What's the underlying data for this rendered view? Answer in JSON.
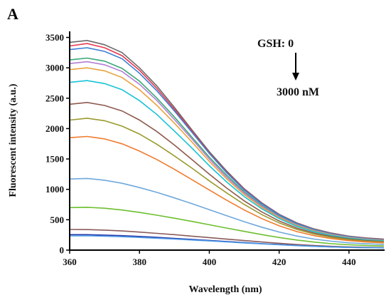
{
  "panel_label": "A",
  "chart_data": {
    "type": "line",
    "xlabel": "Wavelength (nm)",
    "ylabel": "Fluorescent intensity (a.u.)",
    "xlim": [
      360,
      450
    ],
    "ylim": [
      0,
      3600
    ],
    "x_ticks": [
      360,
      380,
      400,
      420,
      440
    ],
    "y_ticks": [
      0,
      500,
      1000,
      1500,
      2000,
      2500,
      3000,
      3500
    ],
    "grid": false,
    "legend": "none",
    "annotations": {
      "start": "GSH: 0",
      "end": "3000 nM",
      "arrow": "down"
    },
    "x": [
      360,
      365,
      370,
      375,
      380,
      385,
      390,
      395,
      400,
      405,
      410,
      415,
      420,
      425,
      430,
      435,
      440,
      445,
      450
    ],
    "series": [
      {
        "color": "#6b6b6b",
        "values": [
          3420,
          3450,
          3380,
          3250,
          3000,
          2700,
          2350,
          1980,
          1620,
          1300,
          1010,
          780,
          590,
          450,
          350,
          280,
          230,
          200,
          180
        ]
      },
      {
        "color": "#e8384f",
        "values": [
          3360,
          3400,
          3330,
          3200,
          2960,
          2660,
          2320,
          1960,
          1600,
          1280,
          1000,
          770,
          585,
          445,
          345,
          275,
          225,
          195,
          175
        ]
      },
      {
        "color": "#3a7fd5",
        "values": [
          3300,
          3330,
          3270,
          3150,
          2910,
          2620,
          2290,
          1940,
          1590,
          1270,
          990,
          765,
          580,
          440,
          340,
          270,
          222,
          190,
          170
        ]
      },
      {
        "color": "#3aa876",
        "values": [
          3130,
          3160,
          3110,
          2990,
          2780,
          2500,
          2190,
          1860,
          1530,
          1230,
          960,
          740,
          560,
          425,
          330,
          262,
          215,
          185,
          165
        ]
      },
      {
        "color": "#b27ed4",
        "values": [
          3070,
          3100,
          3050,
          2940,
          2730,
          2460,
          2150,
          1830,
          1500,
          1200,
          940,
          725,
          550,
          418,
          322,
          256,
          210,
          180,
          160
        ]
      },
      {
        "color": "#e8a33c",
        "values": [
          2970,
          3000,
          2950,
          2840,
          2640,
          2380,
          2090,
          1780,
          1460,
          1170,
          915,
          705,
          535,
          405,
          312,
          248,
          203,
          174,
          155
        ]
      },
      {
        "color": "#17c3d6",
        "values": [
          2760,
          2790,
          2740,
          2640,
          2460,
          2230,
          1960,
          1680,
          1390,
          1120,
          880,
          680,
          518,
          392,
          302,
          240,
          196,
          168,
          150
        ]
      },
      {
        "color": "#8e5a4e",
        "values": [
          2400,
          2430,
          2380,
          2290,
          2140,
          1950,
          1730,
          1490,
          1250,
          1020,
          810,
          630,
          480,
          365,
          282,
          224,
          183,
          156,
          140
        ]
      },
      {
        "color": "#9a9a2e",
        "values": [
          2140,
          2170,
          2130,
          2040,
          1910,
          1740,
          1550,
          1350,
          1140,
          940,
          750,
          585,
          448,
          342,
          264,
          210,
          172,
          147,
          132
        ]
      },
      {
        "color": "#f07b2e",
        "values": [
          1850,
          1870,
          1830,
          1750,
          1630,
          1490,
          1330,
          1160,
          990,
          820,
          660,
          520,
          400,
          306,
          238,
          190,
          156,
          134,
          120
        ]
      },
      {
        "color": "#6fa8dc",
        "values": [
          1170,
          1180,
          1150,
          1100,
          1030,
          950,
          860,
          765,
          665,
          565,
          468,
          378,
          298,
          232,
          182,
          146,
          120,
          104,
          94
        ]
      },
      {
        "color": "#6cbf2e",
        "values": [
          700,
          705,
          690,
          660,
          620,
          575,
          525,
          472,
          418,
          362,
          308,
          256,
          208,
          166,
          132,
          106,
          88,
          76,
          68
        ]
      },
      {
        "color": "#8a5a5a",
        "values": [
          340,
          338,
          330,
          315,
          297,
          276,
          254,
          230,
          206,
          181,
          157,
          134,
          112,
          92,
          75,
          62,
          52,
          46,
          42
        ]
      },
      {
        "color": "#2a3aa8",
        "values": [
          255,
          255,
          248,
          238,
          225,
          210,
          194,
          177,
          160,
          142,
          124,
          107,
          91,
          76,
          63,
          53,
          45,
          40,
          37
        ]
      },
      {
        "color": "#4c9be8",
        "values": [
          235,
          236,
          230,
          221,
          209,
          196,
          182,
          167,
          151,
          135,
          119,
          103,
          88,
          74,
          62,
          52,
          45,
          40,
          37
        ]
      }
    ]
  }
}
